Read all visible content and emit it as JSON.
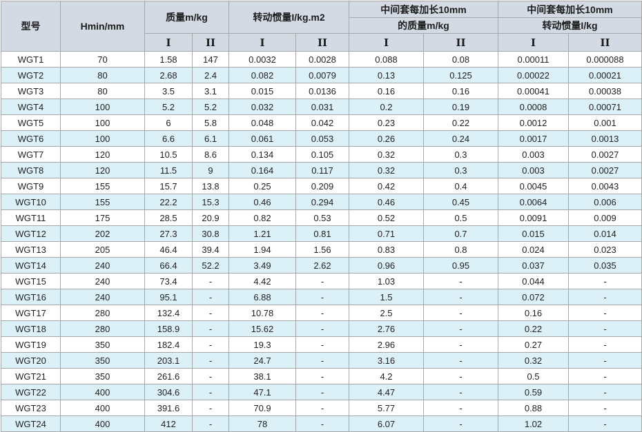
{
  "colors": {
    "header_bg": "#d3dae4",
    "stripe_row_bg": "#dcf0f8",
    "plain_row_bg": "#ffffff",
    "border": "#a6a6a6",
    "text": "#1f1f1f"
  },
  "table": {
    "header": {
      "model": "型号",
      "hmin": "Hmin/mm",
      "mass_group": "质量m/kg",
      "inertia_group": "转动惯量I/kg.m2",
      "ext_mass_line1": "中间套每加长10mm",
      "ext_mass_line2": "的质量m/kg",
      "ext_inertia_line1": "中间套每加长10mm",
      "ext_inertia_line2": "转动惯量I/kg",
      "sub_col_1": "I",
      "sub_col_2": "II"
    },
    "rows": [
      [
        "WGT1",
        "70",
        "1.58",
        "147",
        "0.0032",
        "0.0028",
        "0.088",
        "0.08",
        "0.00011",
        "0.000088"
      ],
      [
        "WGT2",
        "80",
        "2.68",
        "2.4",
        "0.082",
        "0.0079",
        "0.13",
        "0.125",
        "0.00022",
        "0.00021"
      ],
      [
        "WGT3",
        "80",
        "3.5",
        "3.1",
        "0.015",
        "0.0136",
        "0.16",
        "0.16",
        "0.00041",
        "0.00038"
      ],
      [
        "WGT4",
        "100",
        "5.2",
        "5.2",
        "0.032",
        "0.031",
        "0.2",
        "0.19",
        "0.0008",
        "0.00071"
      ],
      [
        "WGT5",
        "100",
        "6",
        "5.8",
        "0.048",
        "0.042",
        "0.23",
        "0.22",
        "0.0012",
        "0.001"
      ],
      [
        "WGT6",
        "100",
        "6.6",
        "6.1",
        "0.061",
        "0.053",
        "0.26",
        "0.24",
        "0.0017",
        "0.0013"
      ],
      [
        "WGT7",
        "120",
        "10.5",
        "8.6",
        "0.134",
        "0.105",
        "0.32",
        "0.3",
        "0.003",
        "0.0027"
      ],
      [
        "WGT8",
        "120",
        "11.5",
        "9",
        "0.164",
        "0.117",
        "0.32",
        "0.3",
        "0.003",
        "0.0027"
      ],
      [
        "WGT9",
        "155",
        "15.7",
        "13.8",
        "0.25",
        "0.209",
        "0.42",
        "0.4",
        "0.0045",
        "0.0043"
      ],
      [
        "WGT10",
        "155",
        "22.2",
        "15.3",
        "0.46",
        "0.294",
        "0.46",
        "0.45",
        "0.0064",
        "0.006"
      ],
      [
        "WGT11",
        "175",
        "28.5",
        "20.9",
        "0.82",
        "0.53",
        "0.52",
        "0.5",
        "0.0091",
        "0.009"
      ],
      [
        "WGT12",
        "202",
        "27.3",
        "30.8",
        "1.21",
        "0.81",
        "0.71",
        "0.7",
        "0.015",
        "0.014"
      ],
      [
        "WGT13",
        "205",
        "46.4",
        "39.4",
        "1.94",
        "1.56",
        "0.83",
        "0.8",
        "0.024",
        "0.023"
      ],
      [
        "WGT14",
        "240",
        "66.4",
        "52.2",
        "3.49",
        "2.62",
        "0.96",
        "0.95",
        "0.037",
        "0.035"
      ],
      [
        "WGT15",
        "240",
        "73.4",
        "-",
        "4.42",
        "-",
        "1.03",
        "-",
        "0.044",
        "-"
      ],
      [
        "WGT16",
        "240",
        "95.1",
        "-",
        "6.88",
        "-",
        "1.5",
        "-",
        "0.072",
        "-"
      ],
      [
        "WGT17",
        "280",
        "132.4",
        "-",
        "10.78",
        "-",
        "2.5",
        "-",
        "0.16",
        "-"
      ],
      [
        "WGT18",
        "280",
        "158.9",
        "-",
        "15.62",
        "-",
        "2.76",
        "-",
        "0.22",
        "-"
      ],
      [
        "WGT19",
        "350",
        "182.4",
        "-",
        "19.3",
        "-",
        "2.96",
        "-",
        "0.27",
        "-"
      ],
      [
        "WGT20",
        "350",
        "203.1",
        "-",
        "24.7",
        "-",
        "3.16",
        "-",
        "0.32",
        "-"
      ],
      [
        "WGT21",
        "350",
        "261.6",
        "-",
        "38.1",
        "-",
        "4.2",
        "-",
        "0.5",
        "-"
      ],
      [
        "WGT22",
        "400",
        "304.6",
        "-",
        "47.1",
        "-",
        "4.47",
        "-",
        "0.59",
        "-"
      ],
      [
        "WGT23",
        "400",
        "391.6",
        "-",
        "70.9",
        "-",
        "5.77",
        "-",
        "0.88",
        "-"
      ],
      [
        "WGT24",
        "400",
        "412",
        "-",
        "78",
        "-",
        "6.07",
        "-",
        "1.02",
        "-"
      ]
    ]
  }
}
